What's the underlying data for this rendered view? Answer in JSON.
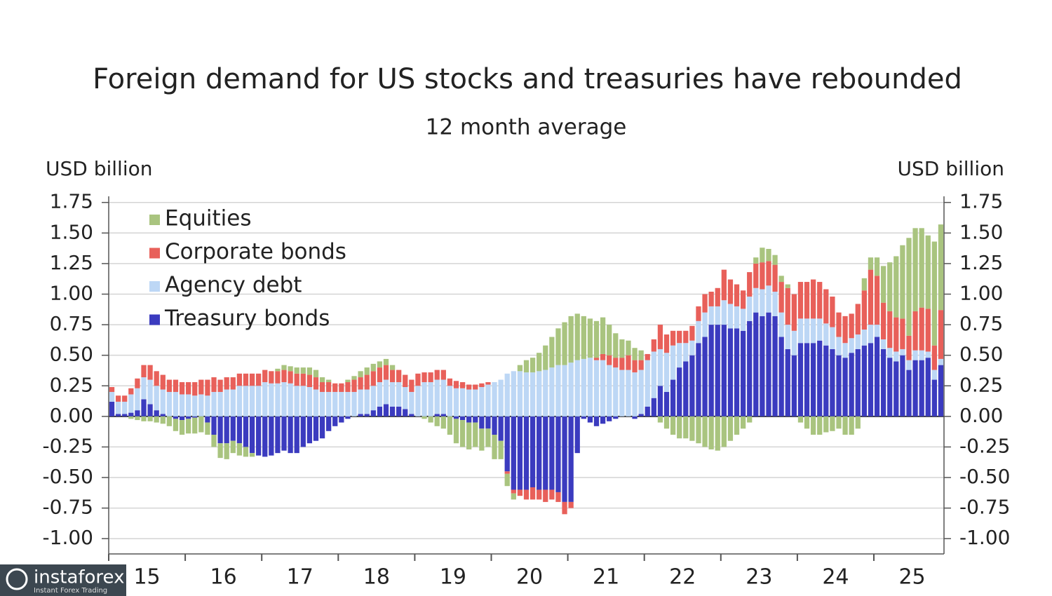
{
  "chart_data": {
    "type": "stacked_bar",
    "title": "Foreign demand for US stocks and treasuries have rebounded",
    "subtitle": "12 month average",
    "y_label": "USD billion",
    "y2_label": "USD billion",
    "legend": "top-left",
    "grid": true,
    "ylim": [
      -1.125,
      1.8
    ],
    "yticks": [
      {
        "value": -1,
        "label": "-1.00"
      },
      -0.75,
      {
        "value": -0.5,
        "label": "-0.50"
      },
      -0.25,
      {
        "value": 0,
        "label": "0.00"
      },
      0.25,
      {
        "value": 0.5,
        "label": "0.50"
      },
      0.75,
      {
        "value": 1,
        "label": "1.00"
      },
      1.25,
      {
        "value": 1.5,
        "label": "1.50"
      },
      1.75
    ],
    "x_labels": [
      "15",
      "16",
      "17",
      "18",
      "19",
      "20",
      "21",
      "22",
      "23",
      "24",
      "25"
    ],
    "categories": [
      null,
      null,
      null,
      null,
      null,
      null,
      null,
      null,
      null,
      null,
      null,
      null,
      null,
      null,
      null,
      null,
      null,
      null,
      null,
      null,
      null,
      null,
      null,
      null,
      null,
      null,
      null,
      null,
      null,
      null,
      null,
      null,
      null,
      null,
      null,
      null,
      null,
      null,
      null,
      null,
      null,
      null,
      null,
      null,
      null,
      null,
      null,
      null,
      null,
      null,
      null,
      null,
      null,
      null,
      null,
      null,
      null,
      null,
      null,
      null,
      null,
      null,
      null,
      null,
      null,
      null,
      null,
      null,
      null,
      null,
      null,
      null,
      null,
      null,
      null,
      null,
      null,
      null,
      null,
      null,
      null,
      null,
      null,
      null,
      null,
      null,
      null,
      null,
      null,
      null,
      null,
      null,
      null,
      null,
      null,
      null,
      null,
      null,
      null,
      null,
      null,
      null,
      null,
      null,
      null,
      null,
      null,
      null,
      null,
      null,
      null,
      null,
      null,
      null,
      null,
      null,
      null,
      null,
      null,
      null,
      null,
      null,
      null,
      null,
      null,
      null,
      null,
      null,
      null,
      null,
      null
    ],
    "series": [
      {
        "name": "Equities",
        "color": "#a9c47f",
        "values": [
          0,
          0,
          0,
          -0.02,
          -0.03,
          -0.04,
          -0.04,
          -0.05,
          -0.06,
          -0.08,
          -0.1,
          -0.12,
          -0.12,
          -0.13,
          -0.13,
          -0.1,
          -0.1,
          -0.12,
          -0.13,
          -0.1,
          -0.1,
          -0.08,
          -0.03,
          0,
          0,
          0,
          0.02,
          0.04,
          0.04,
          0.05,
          0.05,
          0.06,
          0.06,
          0.04,
          0.02,
          0,
          0,
          0.02,
          0.03,
          0.05,
          0.06,
          0.06,
          0.05,
          0.05,
          0.04,
          0,
          0,
          0,
          0,
          -0.02,
          -0.05,
          -0.08,
          -0.1,
          -0.15,
          -0.2,
          -0.22,
          -0.22,
          -0.2,
          -0.18,
          -0.15,
          -0.2,
          -0.15,
          -0.1,
          -0.05,
          0.05,
          0.1,
          0.12,
          0.15,
          0.2,
          0.25,
          0.3,
          0.35,
          0.38,
          0.38,
          0.35,
          0.32,
          0.3,
          0.3,
          0.25,
          0.2,
          0.15,
          0.12,
          0.1,
          0.08,
          0,
          0,
          -0.05,
          -0.1,
          -0.15,
          -0.18,
          -0.18,
          -0.2,
          -0.22,
          -0.25,
          -0.27,
          -0.28,
          -0.25,
          -0.2,
          -0.15,
          -0.1,
          -0.05,
          0.05,
          0.12,
          0.1,
          0.08,
          0.05,
          0.03,
          0,
          -0.05,
          -0.1,
          -0.15,
          -0.15,
          -0.13,
          -0.12,
          -0.1,
          -0.15,
          -0.15,
          -0.1,
          0.1,
          0.1,
          0.15,
          0.3,
          0.4,
          0.5,
          0.6,
          0.8,
          0.68,
          0.65,
          0.6,
          0.85,
          0.7
        ]
      },
      {
        "name": "Corporate bonds",
        "color": "#e8605a",
        "values": [
          0.04,
          0.05,
          0.05,
          0.05,
          0.08,
          0.1,
          0.12,
          0.12,
          0.12,
          0.1,
          0.1,
          0.1,
          0.1,
          0.11,
          0.12,
          0.13,
          0.12,
          0.1,
          0.1,
          0.1,
          0.1,
          0.1,
          0.1,
          0.1,
          0.1,
          0.1,
          0.1,
          0.1,
          0.1,
          0.1,
          0.1,
          0.1,
          0.1,
          0.08,
          0.08,
          0.07,
          0.07,
          0.08,
          0.1,
          0.1,
          0.12,
          0.12,
          0.12,
          0.12,
          0.1,
          0.1,
          0.1,
          0.1,
          0.1,
          0.08,
          0.08,
          0.08,
          0.08,
          0.06,
          0.06,
          0.05,
          0.04,
          0.04,
          0.03,
          0.02,
          0,
          0,
          -0.02,
          -0.03,
          -0.05,
          -0.08,
          -0.1,
          -0.08,
          -0.1,
          -0.08,
          -0.08,
          -0.1,
          -0.05,
          0,
          0,
          0,
          0.02,
          0.05,
          0.08,
          0.08,
          0.1,
          0.12,
          0.1,
          0.08,
          0.05,
          0.1,
          0.2,
          0.15,
          0.12,
          0.1,
          0.1,
          0.12,
          0.12,
          0.15,
          0.12,
          0.15,
          0.25,
          0.2,
          0.18,
          0.15,
          0.2,
          0.2,
          0.22,
          0.2,
          0.22,
          0.25,
          0.3,
          0.3,
          0.3,
          0.3,
          0.32,
          0.3,
          0.28,
          0.25,
          0.2,
          0.22,
          0.2,
          0.25,
          0.32,
          0.45,
          0.4,
          0.3,
          0.3,
          0.28,
          0.25,
          0.2,
          0.32,
          0.35,
          0.35,
          0.2,
          0.4
        ]
      },
      {
        "name": "Agency debt",
        "color": "#bdd7f5",
        "values": [
          0.08,
          0.1,
          0.1,
          0.15,
          0.18,
          0.18,
          0.2,
          0.2,
          0.2,
          0.2,
          0.2,
          0.18,
          0.18,
          0.17,
          0.18,
          0.17,
          0.2,
          0.2,
          0.22,
          0.22,
          0.25,
          0.25,
          0.25,
          0.25,
          0.28,
          0.27,
          0.27,
          0.28,
          0.27,
          0.25,
          0.25,
          0.24,
          0.22,
          0.2,
          0.2,
          0.2,
          0.2,
          0.2,
          0.2,
          0.2,
          0.2,
          0.2,
          0.2,
          0.2,
          0.2,
          0.2,
          0.18,
          0.18,
          0.25,
          0.28,
          0.28,
          0.28,
          0.28,
          0.25,
          0.23,
          0.23,
          0.22,
          0.22,
          0.24,
          0.26,
          0.28,
          0.3,
          0.35,
          0.37,
          0.37,
          0.36,
          0.36,
          0.37,
          0.38,
          0.4,
          0.42,
          0.42,
          0.44,
          0.46,
          0.47,
          0.48,
          0.46,
          0.46,
          0.42,
          0.4,
          0.38,
          0.38,
          0.36,
          0.36,
          0.38,
          0.38,
          0.3,
          0.32,
          0.28,
          0.2,
          0.15,
          0.12,
          0.18,
          0.2,
          0.15,
          0.15,
          0.2,
          0.2,
          0.18,
          0.18,
          0.2,
          0.2,
          0.22,
          0.22,
          0.2,
          0.2,
          0.2,
          0.2,
          0.2,
          0.2,
          0.2,
          0.18,
          0.18,
          0.18,
          0.15,
          0.12,
          0.12,
          0.12,
          0.13,
          0.15,
          0.1,
          0.08,
          0.08,
          0.08,
          0.05,
          0.08,
          0.08,
          0.08,
          0.05,
          0.08,
          0.05
        ]
      },
      {
        "name": "Treasury bonds",
        "color": "#3b3bbf",
        "values": [
          0.12,
          0.02,
          0.02,
          0.03,
          0.05,
          0.14,
          0.1,
          0.05,
          0.02,
          0,
          -0.02,
          -0.03,
          -0.02,
          -0.01,
          0,
          -0.05,
          -0.15,
          -0.22,
          -0.22,
          -0.2,
          -0.22,
          -0.25,
          -0.3,
          -0.32,
          -0.33,
          -0.32,
          -0.3,
          -0.28,
          -0.3,
          -0.3,
          -0.25,
          -0.22,
          -0.2,
          -0.18,
          -0.12,
          -0.08,
          -0.05,
          -0.02,
          0,
          0.02,
          0.02,
          0.05,
          0.08,
          0.1,
          0.08,
          0.08,
          0.06,
          0.02,
          0,
          0,
          0,
          0.02,
          0.02,
          0,
          -0.02,
          -0.03,
          -0.05,
          -0.05,
          -0.1,
          -0.1,
          -0.15,
          -0.2,
          -0.45,
          -0.6,
          -0.6,
          -0.6,
          -0.58,
          -0.6,
          -0.6,
          -0.6,
          -0.62,
          -0.7,
          -0.7,
          -0.3,
          -0.02,
          -0.05,
          -0.08,
          -0.06,
          -0.04,
          -0.02,
          0,
          0,
          -0.02,
          0.02,
          0.08,
          0.15,
          0.25,
          0.2,
          0.3,
          0.4,
          0.45,
          0.5,
          0.6,
          0.65,
          0.75,
          0.75,
          0.75,
          0.72,
          0.72,
          0.7,
          0.78,
          0.85,
          0.82,
          0.85,
          0.82,
          0.65,
          0.55,
          0.5,
          0.6,
          0.6,
          0.6,
          0.62,
          0.58,
          0.55,
          0.5,
          0.48,
          0.52,
          0.55,
          0.58,
          0.6,
          0.65,
          0.55,
          0.48,
          0.45,
          0.5,
          0.38,
          0.46,
          0.46,
          0.48,
          0.3,
          0.42
        ]
      }
    ]
  },
  "watermark": {
    "brand": "instaforex",
    "tagline": "Instant Forex Trading"
  }
}
